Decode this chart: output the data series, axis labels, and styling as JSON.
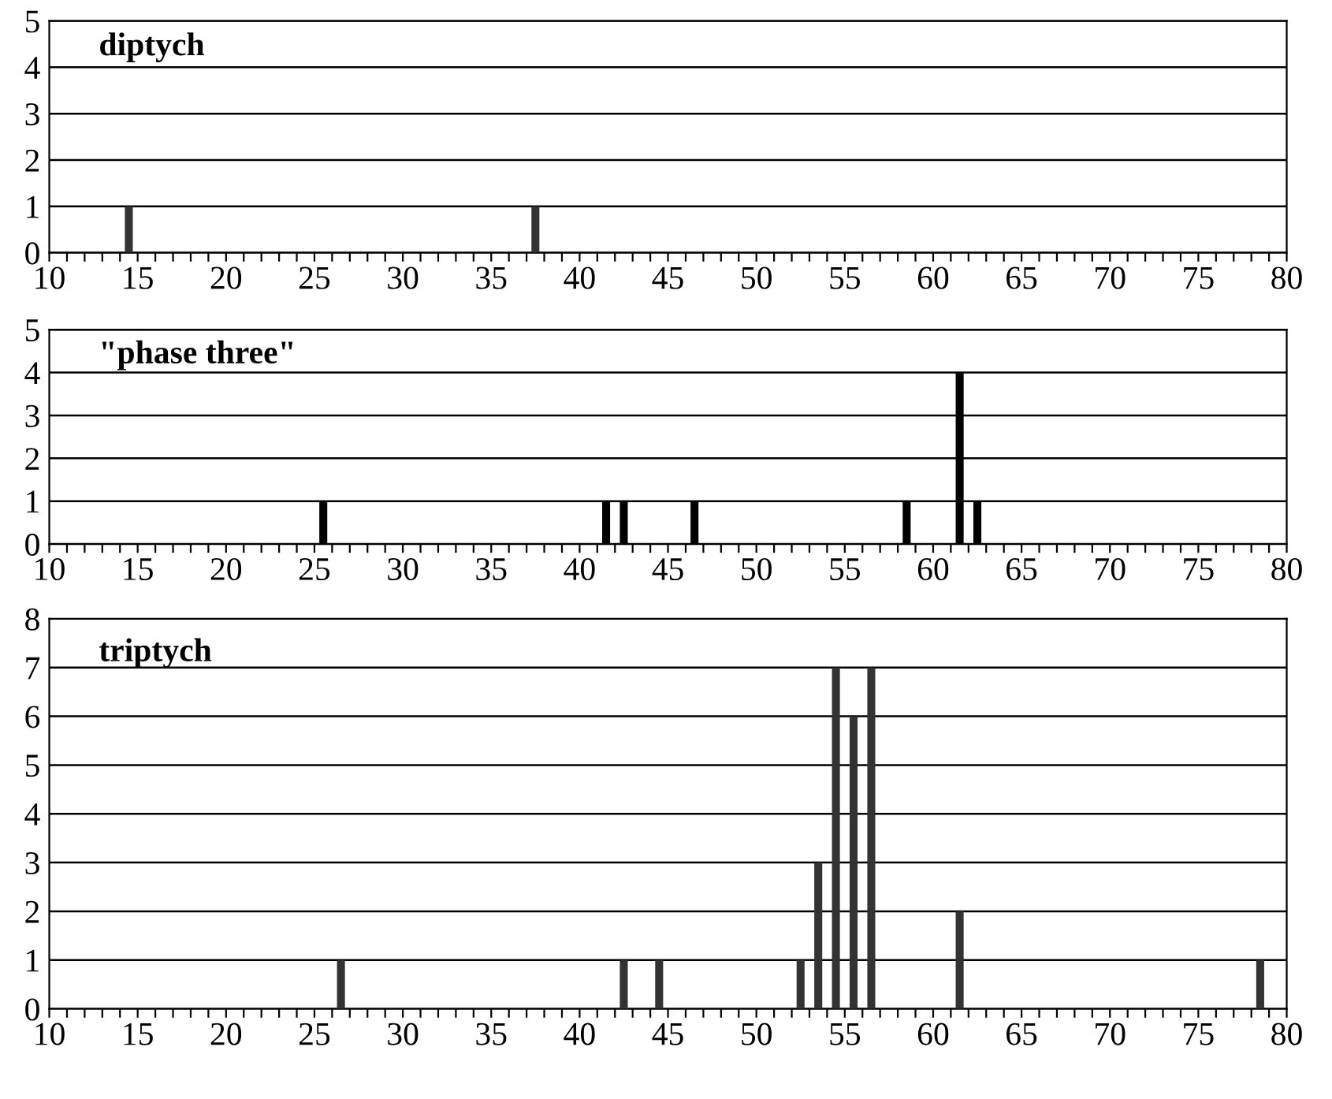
{
  "chart_data": [
    {
      "type": "bar",
      "title": "diptych",
      "x": [
        14.5,
        37.5
      ],
      "values": [
        1,
        1
      ],
      "color": "#333333",
      "xlim": [
        10,
        80
      ],
      "ylim": [
        0,
        5
      ],
      "yticks": [
        0,
        1,
        2,
        3,
        4,
        5
      ],
      "grid": "y",
      "xticks": [
        10,
        {
          "value": 11,
          "label": null
        },
        {
          "value": 12,
          "label": null
        },
        {
          "value": 13,
          "label": null
        },
        {
          "value": 14,
          "label": null
        },
        15,
        {
          "value": 16,
          "label": null
        },
        {
          "value": 17,
          "label": null
        },
        {
          "value": 18,
          "label": null
        },
        {
          "value": 19,
          "label": null
        },
        20,
        {
          "value": 21,
          "label": null
        },
        {
          "value": 22,
          "label": null
        },
        {
          "value": 23,
          "label": null
        },
        {
          "value": 24,
          "label": null
        },
        25,
        {
          "value": 26,
          "label": null
        },
        {
          "value": 27,
          "label": null
        },
        {
          "value": 28,
          "label": null
        },
        {
          "value": 29,
          "label": null
        },
        30,
        {
          "value": 31,
          "label": null
        },
        {
          "value": 32,
          "label": null
        },
        {
          "value": 33,
          "label": null
        },
        {
          "value": 34,
          "label": null
        },
        35,
        {
          "value": 36,
          "label": null
        },
        {
          "value": 37,
          "label": null
        },
        {
          "value": 38,
          "label": null
        },
        {
          "value": 39,
          "label": null
        },
        40,
        {
          "value": 41,
          "label": null
        },
        {
          "value": 42,
          "label": null
        },
        {
          "value": 43,
          "label": null
        },
        {
          "value": 44,
          "label": null
        },
        45,
        {
          "value": 46,
          "label": null
        },
        {
          "value": 47,
          "label": null
        },
        {
          "value": 48,
          "label": null
        },
        {
          "value": 49,
          "label": null
        },
        50,
        {
          "value": 51,
          "label": null
        },
        {
          "value": 52,
          "label": null
        },
        {
          "value": 53,
          "label": null
        },
        {
          "value": 54,
          "label": null
        },
        55,
        {
          "value": 56,
          "label": null
        },
        {
          "value": 57,
          "label": null
        },
        {
          "value": 58,
          "label": null
        },
        {
          "value": 59,
          "label": null
        },
        60,
        {
          "value": 61,
          "label": null
        },
        {
          "value": 62,
          "label": null
        },
        {
          "value": 63,
          "label": null
        },
        {
          "value": 64,
          "label": null
        },
        65,
        {
          "value": 66,
          "label": null
        },
        {
          "value": 67,
          "label": null
        },
        {
          "value": 68,
          "label": null
        },
        {
          "value": 69,
          "label": null
        },
        70,
        {
          "value": 71,
          "label": null
        },
        {
          "value": 72,
          "label": null
        },
        {
          "value": 73,
          "label": null
        },
        {
          "value": 74,
          "label": null
        },
        75,
        {
          "value": 76,
          "label": null
        },
        {
          "value": 77,
          "label": null
        },
        {
          "value": 78,
          "label": null
        },
        {
          "value": 79,
          "label": null
        },
        80
      ]
    },
    {
      "type": "bar",
      "title": "\"phase three\"",
      "x": [
        25.5,
        41.5,
        42.5,
        46.5,
        58.5,
        61.5,
        62.5
      ],
      "values": [
        1,
        1,
        1,
        1,
        1,
        4,
        1
      ],
      "color": "#000000",
      "xlim": [
        10,
        80
      ],
      "ylim": [
        0,
        5
      ],
      "yticks": [
        0,
        1,
        2,
        3,
        4,
        5
      ],
      "grid": "y",
      "xticks": [
        10,
        {
          "value": 11,
          "label": null
        },
        {
          "value": 12,
          "label": null
        },
        {
          "value": 13,
          "label": null
        },
        {
          "value": 14,
          "label": null
        },
        15,
        {
          "value": 16,
          "label": null
        },
        {
          "value": 17,
          "label": null
        },
        {
          "value": 18,
          "label": null
        },
        {
          "value": 19,
          "label": null
        },
        20,
        {
          "value": 21,
          "label": null
        },
        {
          "value": 22,
          "label": null
        },
        {
          "value": 23,
          "label": null
        },
        {
          "value": 24,
          "label": null
        },
        25,
        {
          "value": 26,
          "label": null
        },
        {
          "value": 27,
          "label": null
        },
        {
          "value": 28,
          "label": null
        },
        {
          "value": 29,
          "label": null
        },
        30,
        {
          "value": 31,
          "label": null
        },
        {
          "value": 32,
          "label": null
        },
        {
          "value": 33,
          "label": null
        },
        {
          "value": 34,
          "label": null
        },
        35,
        {
          "value": 36,
          "label": null
        },
        {
          "value": 37,
          "label": null
        },
        {
          "value": 38,
          "label": null
        },
        {
          "value": 39,
          "label": null
        },
        40,
        {
          "value": 41,
          "label": null
        },
        {
          "value": 42,
          "label": null
        },
        {
          "value": 43,
          "label": null
        },
        {
          "value": 44,
          "label": null
        },
        45,
        {
          "value": 46,
          "label": null
        },
        {
          "value": 47,
          "label": null
        },
        {
          "value": 48,
          "label": null
        },
        {
          "value": 49,
          "label": null
        },
        50,
        {
          "value": 51,
          "label": null
        },
        {
          "value": 52,
          "label": null
        },
        {
          "value": 53,
          "label": null
        },
        {
          "value": 54,
          "label": null
        },
        55,
        {
          "value": 56,
          "label": null
        },
        {
          "value": 57,
          "label": null
        },
        {
          "value": 58,
          "label": null
        },
        {
          "value": 59,
          "label": null
        },
        60,
        {
          "value": 61,
          "label": null
        },
        {
          "value": 62,
          "label": null
        },
        {
          "value": 63,
          "label": null
        },
        {
          "value": 64,
          "label": null
        },
        65,
        {
          "value": 66,
          "label": null
        },
        {
          "value": 67,
          "label": null
        },
        {
          "value": 68,
          "label": null
        },
        {
          "value": 69,
          "label": null
        },
        70,
        {
          "value": 71,
          "label": null
        },
        {
          "value": 72,
          "label": null
        },
        {
          "value": 73,
          "label": null
        },
        {
          "value": 74,
          "label": null
        },
        75,
        {
          "value": 76,
          "label": null
        },
        {
          "value": 77,
          "label": null
        },
        {
          "value": 78,
          "label": null
        },
        {
          "value": 79,
          "label": null
        },
        80
      ]
    },
    {
      "type": "bar",
      "title": "triptych",
      "x": [
        26.5,
        42.5,
        44.5,
        52.5,
        53.5,
        54.5,
        55.5,
        56.5,
        61.5,
        78.5
      ],
      "values": [
        1,
        1,
        1,
        1,
        3,
        7,
        6,
        7,
        2,
        1
      ],
      "color": "#333333",
      "xlim": [
        10,
        80
      ],
      "ylim": [
        0,
        8
      ],
      "yticks": [
        0,
        1,
        2,
        3,
        4,
        5,
        6,
        7,
        8
      ],
      "grid": "y",
      "xticks": [
        10,
        {
          "value": 11,
          "label": null
        },
        {
          "value": 12,
          "label": null
        },
        {
          "value": 13,
          "label": null
        },
        {
          "value": 14,
          "label": null
        },
        15,
        {
          "value": 16,
          "label": null
        },
        {
          "value": 17,
          "label": null
        },
        {
          "value": 18,
          "label": null
        },
        {
          "value": 19,
          "label": null
        },
        20,
        {
          "value": 21,
          "label": null
        },
        {
          "value": 22,
          "label": null
        },
        {
          "value": 23,
          "label": null
        },
        {
          "value": 24,
          "label": null
        },
        25,
        {
          "value": 26,
          "label": null
        },
        {
          "value": 27,
          "label": null
        },
        {
          "value": 28,
          "label": null
        },
        {
          "value": 29,
          "label": null
        },
        30,
        {
          "value": 31,
          "label": null
        },
        {
          "value": 32,
          "label": null
        },
        {
          "value": 33,
          "label": null
        },
        {
          "value": 34,
          "label": null
        },
        35,
        {
          "value": 36,
          "label": null
        },
        {
          "value": 37,
          "label": null
        },
        {
          "value": 38,
          "label": null
        },
        {
          "value": 39,
          "label": null
        },
        40,
        {
          "value": 41,
          "label": null
        },
        {
          "value": 42,
          "label": null
        },
        {
          "value": 43,
          "label": null
        },
        {
          "value": 44,
          "label": null
        },
        45,
        {
          "value": 46,
          "label": null
        },
        {
          "value": 47,
          "label": null
        },
        {
          "value": 48,
          "label": null
        },
        {
          "value": 49,
          "label": null
        },
        50,
        {
          "value": 51,
          "label": null
        },
        {
          "value": 52,
          "label": null
        },
        {
          "value": 53,
          "label": null
        },
        {
          "value": 54,
          "label": null
        },
        55,
        {
          "value": 56,
          "label": null
        },
        {
          "value": 57,
          "label": null
        },
        {
          "value": 58,
          "label": null
        },
        {
          "value": 59,
          "label": null
        },
        60,
        {
          "value": 61,
          "label": null
        },
        {
          "value": 62,
          "label": null
        },
        {
          "value": 63,
          "label": null
        },
        {
          "value": 64,
          "label": null
        },
        65,
        {
          "value": 66,
          "label": null
        },
        {
          "value": 67,
          "label": null
        },
        {
          "value": 68,
          "label": null
        },
        {
          "value": 69,
          "label": null
        },
        70,
        {
          "value": 71,
          "label": null
        },
        {
          "value": 72,
          "label": null
        },
        {
          "value": 73,
          "label": null
        },
        {
          "value": 74,
          "label": null
        },
        75,
        {
          "value": 76,
          "label": null
        },
        {
          "value": 77,
          "label": null
        },
        {
          "value": 78,
          "label": null
        },
        {
          "value": 79,
          "label": null
        },
        80
      ]
    }
  ]
}
